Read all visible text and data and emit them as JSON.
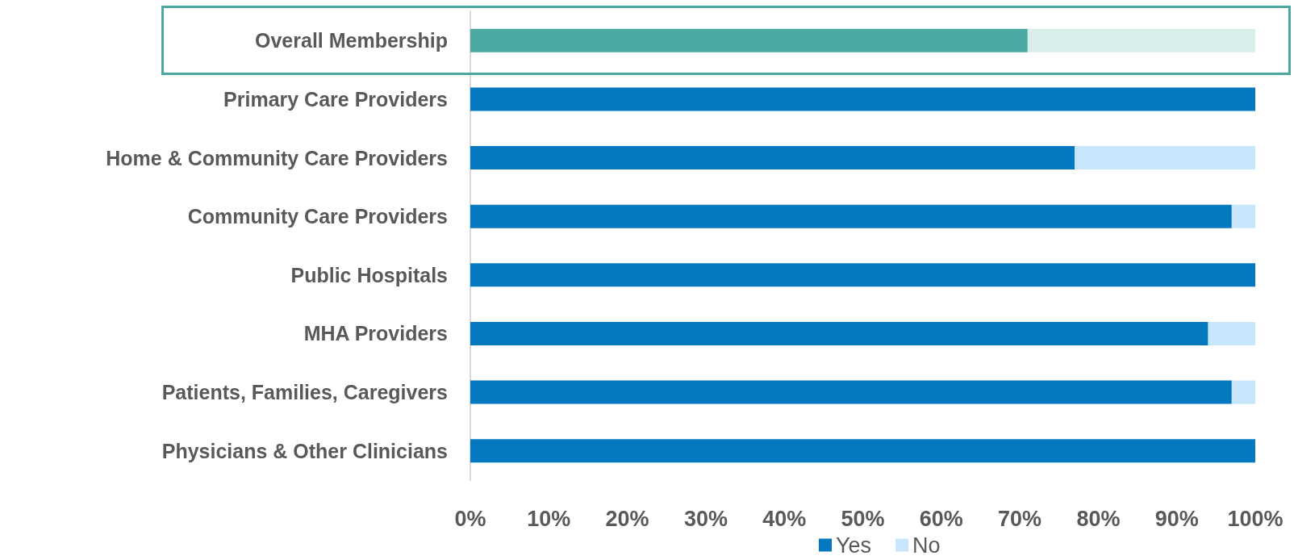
{
  "chart_data": {
    "type": "bar",
    "orientation": "horizontal",
    "stacked": true,
    "categories": [
      "Overall Membership",
      "Primary Care Providers",
      "Home & Community Care Providers",
      "Community Care Providers",
      "Public Hospitals",
      "MHA Providers",
      "Patients, Families, Caregivers",
      "Physicians & Other Clinicians"
    ],
    "series": [
      {
        "name": "Yes",
        "color": "#0579c0",
        "colors": [
          "#4aa8a0",
          "#0579c0",
          "#0579c0",
          "#0579c0",
          "#0579c0",
          "#0579c0",
          "#0579c0",
          "#0579c0"
        ],
        "values": [
          71,
          100,
          77,
          97,
          100,
          94,
          97,
          100
        ]
      },
      {
        "name": "No",
        "color": "#c5e6fb",
        "colors": [
          "#d9efec",
          "#c5e6fb",
          "#c5e6fb",
          "#c5e6fb",
          "#c5e6fb",
          "#c5e6fb",
          "#c5e6fb",
          "#c5e6fb"
        ],
        "values": [
          29,
          0,
          23,
          3,
          0,
          6,
          3,
          0
        ]
      }
    ],
    "xlim": [
      0,
      100
    ],
    "xticks": [
      {
        "value": 0,
        "label": "0%"
      },
      {
        "value": 10,
        "label": "10%"
      },
      {
        "value": 20,
        "label": "20%"
      },
      {
        "value": 30,
        "label": "30%"
      },
      {
        "value": 40,
        "label": "40%"
      },
      {
        "value": 50,
        "label": "50%"
      },
      {
        "value": 60,
        "label": "60%"
      },
      {
        "value": 70,
        "label": "70%"
      },
      {
        "value": 80,
        "label": "80%"
      },
      {
        "value": 90,
        "label": "90%"
      },
      {
        "value": 100,
        "label": "100%"
      }
    ],
    "grid": false,
    "legend": "bottom"
  }
}
